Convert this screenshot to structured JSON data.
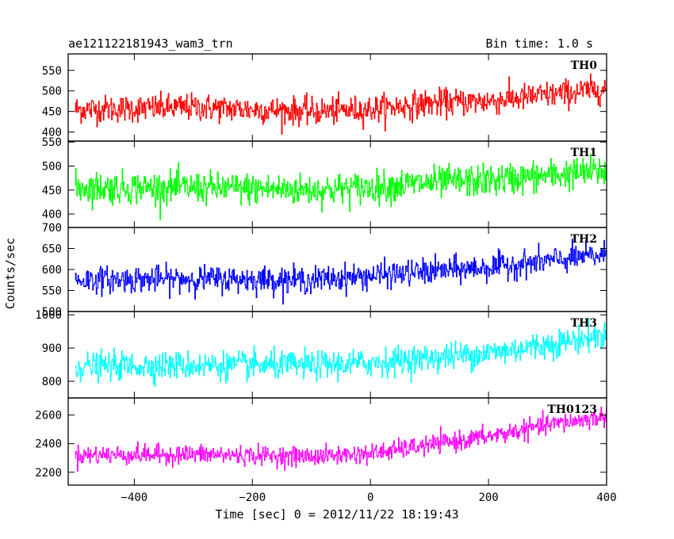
{
  "header": {
    "title": "ae121122181943_wam3_trn",
    "bin_time": "Bin time: 1.0 s"
  },
  "ylabel": "Counts/sec",
  "xlabel": "Time [sec] 0 = 2012/11/22 18:19:43",
  "chart_data": [
    {
      "type": "line",
      "name": "TH0",
      "color": "#ff0000",
      "x_range": [
        -512,
        400
      ],
      "ylim": [
        378,
        590
      ],
      "yticks": [
        400,
        450,
        500,
        550
      ],
      "ytick_labels": [
        "400",
        "450",
        "500",
        "550"
      ],
      "trend": {
        "x": [
          -500,
          -300,
          -100,
          0,
          100,
          200,
          300,
          400
        ],
        "y": [
          455,
          460,
          450,
          455,
          470,
          475,
          490,
          505
        ]
      },
      "noise_amplitude": 30
    },
    {
      "type": "line",
      "name": "TH1",
      "color": "#00ff00",
      "x_range": [
        -512,
        400
      ],
      "ylim": [
        372,
        552
      ],
      "yticks": [
        400,
        450,
        500,
        550
      ],
      "ytick_labels": [
        "400",
        "450",
        "500",
        "550"
      ],
      "trend": {
        "x": [
          -500,
          -300,
          -100,
          0,
          100,
          200,
          300,
          400
        ],
        "y": [
          455,
          455,
          450,
          455,
          465,
          470,
          480,
          490
        ]
      },
      "noise_amplitude": 30
    },
    {
      "type": "line",
      "name": "TH2",
      "color": "#0000ff",
      "x_range": [
        -512,
        400
      ],
      "ylim": [
        500,
        700
      ],
      "yticks": [
        500,
        550,
        600,
        650,
        700
      ],
      "ytick_labels": [
        "500",
        "550",
        "600",
        "650",
        "700"
      ],
      "trend": {
        "x": [
          -500,
          -300,
          -100,
          0,
          100,
          200,
          300,
          400
        ],
        "y": [
          575,
          578,
          575,
          585,
          595,
          605,
          620,
          635
        ]
      },
      "noise_amplitude": 28
    },
    {
      "type": "line",
      "name": "TH3",
      "color": "#00ffff",
      "x_range": [
        -512,
        400
      ],
      "ylim": [
        750,
        1010
      ],
      "yticks": [
        800,
        900,
        1000
      ],
      "ytick_labels": [
        "800",
        "900",
        "1000"
      ],
      "trend": {
        "x": [
          -500,
          -300,
          -100,
          0,
          100,
          200,
          300,
          400
        ],
        "y": [
          845,
          848,
          848,
          855,
          870,
          885,
          910,
          940
        ]
      },
      "noise_amplitude": 38
    },
    {
      "type": "line",
      "name": "TH0123",
      "color": "#ff00ff",
      "x_range": [
        -512,
        400
      ],
      "ylim": [
        2110,
        2720
      ],
      "yticks": [
        2200,
        2400,
        2600
      ],
      "ytick_labels": [
        "2200",
        "2400",
        "2600"
      ],
      "trend": {
        "x": [
          -500,
          -300,
          -100,
          0,
          100,
          200,
          300,
          400
        ],
        "y": [
          2320,
          2325,
          2310,
          2330,
          2390,
          2450,
          2530,
          2590
        ]
      },
      "noise_amplitude": 60
    }
  ],
  "xaxis": {
    "ticks": [
      -400,
      -200,
      0,
      200,
      400
    ],
    "tick_labels": [
      "−400",
      "−200",
      "0",
      "200",
      "400"
    ]
  }
}
